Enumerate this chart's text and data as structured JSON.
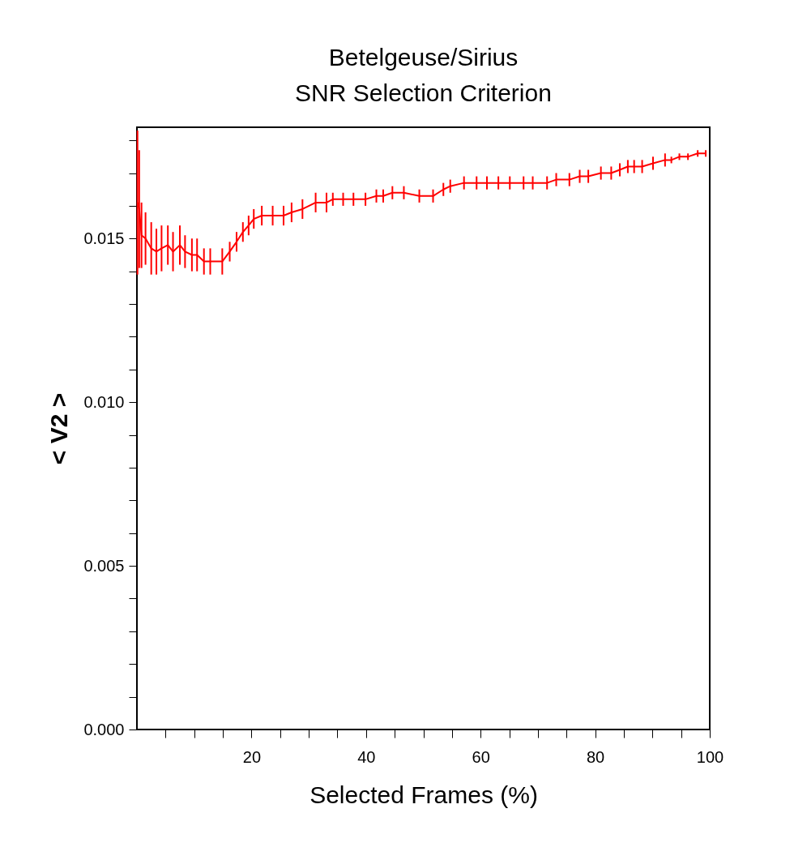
{
  "chart_data": {
    "type": "line",
    "title": "Betelgeuse/Sirius\nSNR Selection Criterion",
    "xlabel": "Selected Frames (%)",
    "ylabel": "< V2 >",
    "x": [
      0.1,
      0.4,
      0.8,
      1.5,
      2.5,
      3.4,
      4.3,
      5.4,
      6.3,
      7.5,
      8.4,
      9.6,
      10.5,
      11.7,
      12.8,
      14.9,
      16.2,
      17.4,
      18.5,
      19.5,
      20.4,
      21.8,
      23.7,
      25.6,
      27.0,
      28.9,
      31.2,
      33.1,
      34.2,
      36.0,
      37.8,
      39.9,
      41.8,
      43.0,
      44.6,
      46.6,
      49.3,
      51.7,
      53.5,
      54.7,
      57.1,
      59.3,
      61.1,
      63.1,
      65.1,
      67.5,
      69.1,
      71.6,
      73.2,
      75.5,
      77.3,
      78.8,
      81.0,
      82.8,
      84.3,
      85.7,
      86.8,
      88.2,
      90.1,
      92.2,
      93.3,
      94.7,
      96.2,
      97.9,
      99.3
    ],
    "series": [
      {
        "color": "#ff0000",
        "values": [
          0.0161,
          0.0159,
          0.0151,
          0.015,
          0.0147,
          0.0146,
          0.0147,
          0.0148,
          0.0146,
          0.0148,
          0.0146,
          0.0145,
          0.0145,
          0.0143,
          0.0143,
          0.0143,
          0.0146,
          0.0149,
          0.0152,
          0.0154,
          0.0156,
          0.0157,
          0.0157,
          0.0157,
          0.0158,
          0.0159,
          0.0161,
          0.0161,
          0.0162,
          0.0162,
          0.0162,
          0.0162,
          0.0163,
          0.0163,
          0.0164,
          0.0164,
          0.0163,
          0.0163,
          0.0165,
          0.0166,
          0.0167,
          0.0167,
          0.0167,
          0.0167,
          0.0167,
          0.0167,
          0.0167,
          0.0167,
          0.0168,
          0.0168,
          0.0169,
          0.0169,
          0.017,
          0.017,
          0.0171,
          0.0172,
          0.0172,
          0.0172,
          0.0173,
          0.0174,
          0.0174,
          0.0175,
          0.0175,
          0.0176,
          0.0176
        ],
        "errors": [
          0.0022,
          0.0018,
          0.001,
          0.0008,
          0.0008,
          0.0007,
          0.0007,
          0.0006,
          0.0006,
          0.0006,
          0.0005,
          0.0005,
          0.0005,
          0.0004,
          0.0004,
          0.0004,
          0.0003,
          0.0003,
          0.0003,
          0.0003,
          0.0003,
          0.0003,
          0.0003,
          0.0003,
          0.0003,
          0.0003,
          0.0003,
          0.0003,
          0.0002,
          0.0002,
          0.0002,
          0.0002,
          0.0002,
          0.0002,
          0.0002,
          0.0002,
          0.0002,
          0.0002,
          0.0002,
          0.0002,
          0.0002,
          0.0002,
          0.0002,
          0.0002,
          0.0002,
          0.0002,
          0.0002,
          0.0002,
          0.0002,
          0.0002,
          0.0002,
          0.0002,
          0.0002,
          0.0002,
          0.0002,
          0.0002,
          0.0002,
          0.0002,
          0.0002,
          0.0002,
          0.0001,
          0.0001,
          0.0001,
          0.0001,
          0.0001
        ]
      }
    ],
    "xlim": [
      0,
      100
    ],
    "ylim": [
      0,
      0.0184
    ],
    "xticks": [
      {
        "value": 5,
        "label": null
      },
      {
        "value": 10,
        "label": null
      },
      {
        "value": 15,
        "label": null
      },
      20,
      {
        "value": 25,
        "label": null
      },
      {
        "value": 30,
        "label": null
      },
      {
        "value": 35,
        "label": null
      },
      40,
      {
        "value": 45,
        "label": null
      },
      {
        "value": 50,
        "label": null
      },
      {
        "value": 55,
        "label": null
      },
      60,
      {
        "value": 65,
        "label": null
      },
      {
        "value": 70,
        "label": null
      },
      {
        "value": 75,
        "label": null
      },
      80,
      {
        "value": 85,
        "label": null
      },
      {
        "value": 90,
        "label": null
      },
      {
        "value": 95,
        "label": null
      },
      100
    ],
    "yticks": [
      {
        "value": 0,
        "label": "0.000"
      },
      {
        "value": 0.001,
        "label": null
      },
      {
        "value": 0.002,
        "label": null
      },
      {
        "value": 0.003,
        "label": null
      },
      {
        "value": 0.004,
        "label": null
      },
      {
        "value": 0.005,
        "label": "0.005"
      },
      {
        "value": 0.006,
        "label": null
      },
      {
        "value": 0.007,
        "label": null
      },
      {
        "value": 0.008,
        "label": null
      },
      {
        "value": 0.009,
        "label": null
      },
      {
        "value": 0.01,
        "label": "0.010"
      },
      {
        "value": 0.011,
        "label": null
      },
      {
        "value": 0.012,
        "label": null
      },
      {
        "value": 0.013,
        "label": null
      },
      {
        "value": 0.014,
        "label": null
      },
      {
        "value": 0.015,
        "label": "0.015"
      },
      {
        "value": 0.016,
        "label": null
      },
      {
        "value": 0.017,
        "label": null
      },
      {
        "value": 0.018,
        "label": null
      }
    ],
    "grid": false
  }
}
